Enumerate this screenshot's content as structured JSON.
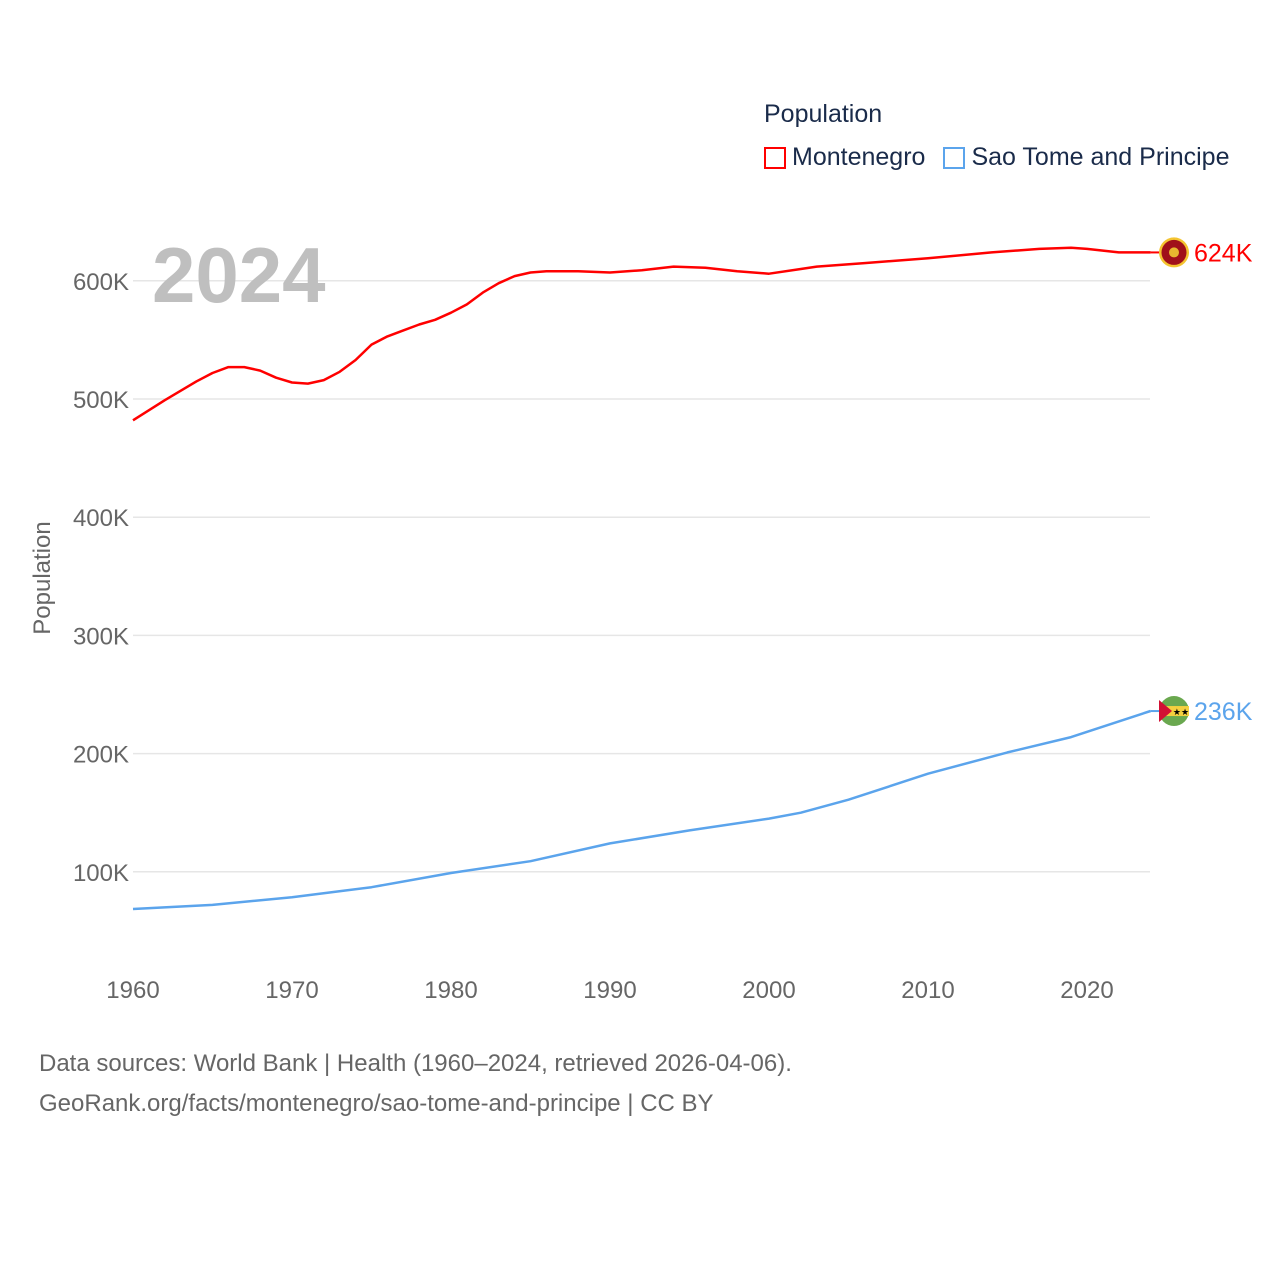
{
  "chart_data": {
    "type": "line",
    "ylabel": "Population",
    "xlabel": "",
    "xlim": [
      1960,
      2024
    ],
    "ylim": [
      0,
      660000
    ],
    "x_ticks": [
      "1960",
      "1970",
      "1980",
      "1990",
      "2000",
      "2010",
      "2020"
    ],
    "y_ticks": [
      {
        "value": 100000,
        "label": "100K"
      },
      {
        "value": 200000,
        "label": "200K"
      },
      {
        "value": 300000,
        "label": "300K"
      },
      {
        "value": 400000,
        "label": "400K"
      },
      {
        "value": 500000,
        "label": "500K"
      },
      {
        "value": 600000,
        "label": "600K"
      }
    ],
    "grid": true,
    "legend_title": "Population",
    "legend_position": "top-right",
    "year_label": "2024",
    "series": [
      {
        "name": "Montenegro",
        "color": "#ff0000",
        "end_label": "624K",
        "flag": "montenegro-flag",
        "x": [
          1960,
          1962,
          1964,
          1965,
          1966,
          1967,
          1968,
          1969,
          1970,
          1971,
          1972,
          1973,
          1974,
          1975,
          1976,
          1977,
          1978,
          1979,
          1980,
          1981,
          1982,
          1983,
          1984,
          1985,
          1986,
          1988,
          1990,
          1992,
          1994,
          1996,
          1998,
          2000,
          2002,
          2003,
          2006,
          2010,
          2014,
          2017,
          2019,
          2020,
          2022,
          2024
        ],
        "values": [
          482000,
          499000,
          515000,
          522000,
          527000,
          527000,
          524000,
          518000,
          514000,
          513000,
          516000,
          523000,
          533000,
          546000,
          553000,
          558000,
          563000,
          567000,
          573000,
          580000,
          590000,
          598000,
          604000,
          607000,
          608000,
          608000,
          607000,
          609000,
          612000,
          611000,
          608000,
          606000,
          610000,
          612000,
          615000,
          619000,
          624000,
          627000,
          628000,
          627000,
          624000,
          624000
        ]
      },
      {
        "name": "Sao Tome and Principe",
        "color": "#5ba4ec",
        "end_label": "236K",
        "flag": "sao-tome-flag",
        "x": [
          1960,
          1965,
          1970,
          1975,
          1980,
          1985,
          1990,
          1995,
          2000,
          2002,
          2005,
          2010,
          2015,
          2019,
          2024
        ],
        "values": [
          68500,
          72000,
          78500,
          87000,
          99000,
          109000,
          124000,
          135000,
          145000,
          150000,
          161000,
          183000,
          201000,
          214000,
          236000
        ]
      }
    ]
  },
  "footer": {
    "line1": "Data sources: World Bank | Health (1960–2024, retrieved 2026-04-06).",
    "line2": "GeoRank.org/facts/montenegro/sao-tome-and-principe | CC BY"
  }
}
